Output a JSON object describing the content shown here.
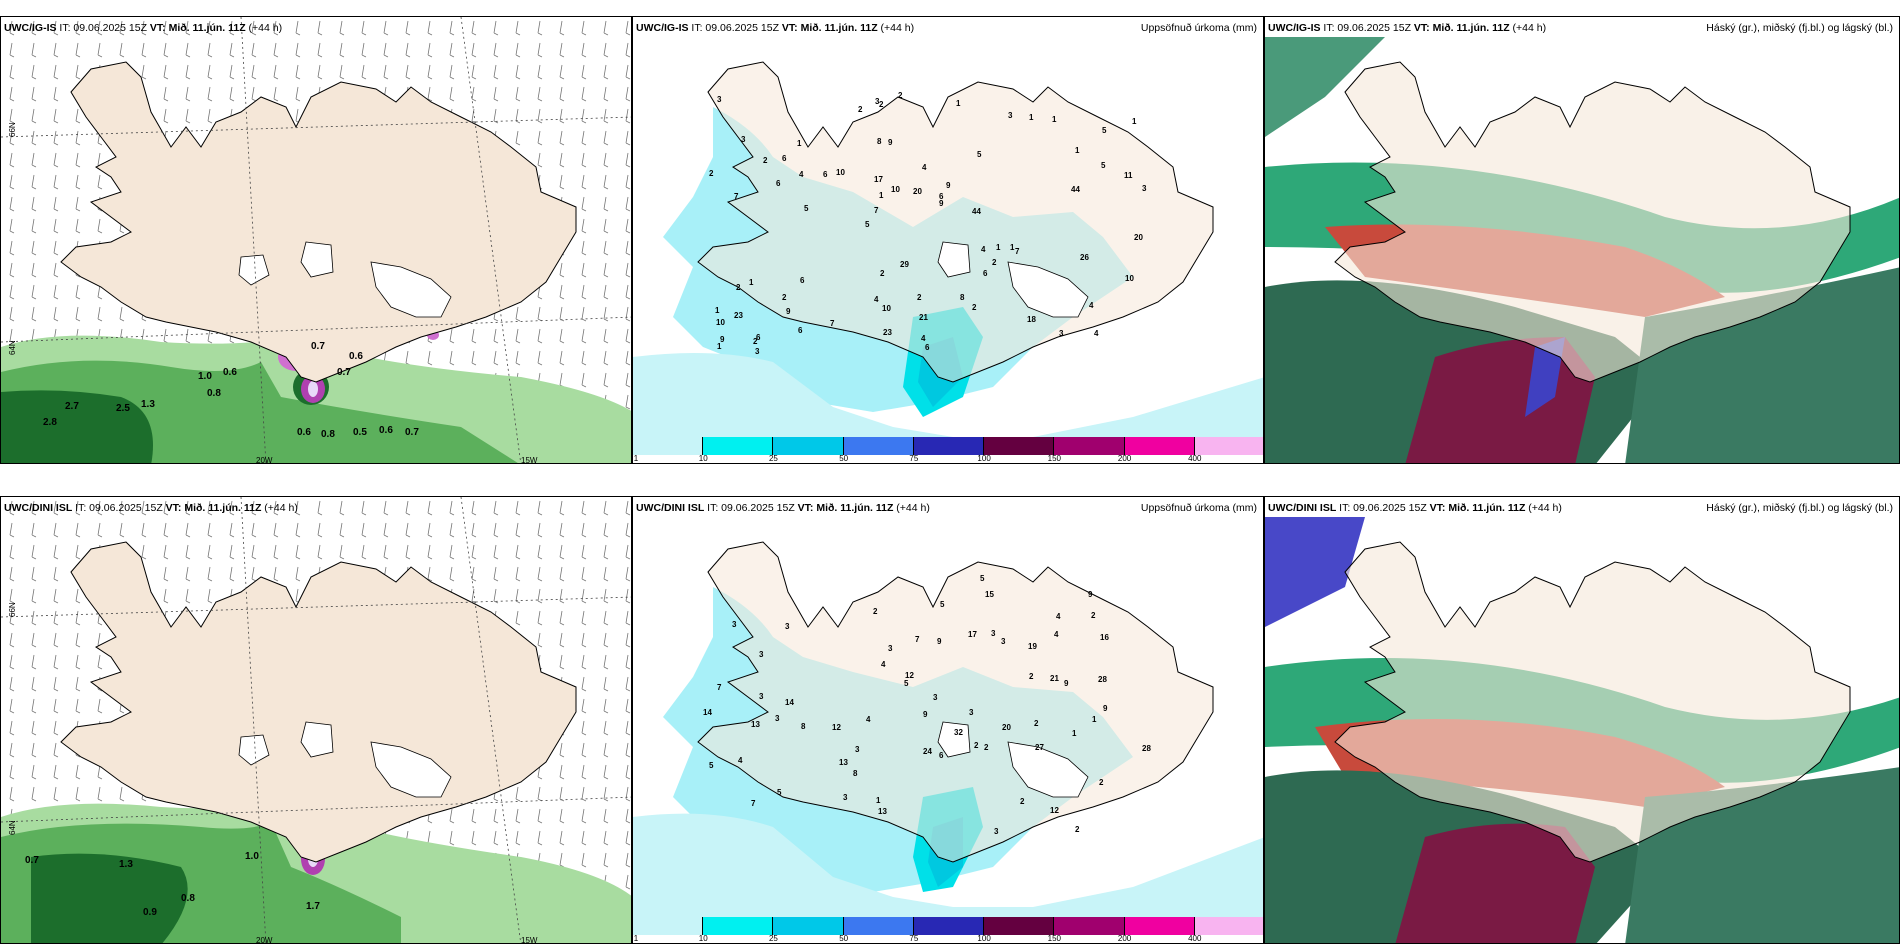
{
  "panels": [
    {
      "id": "top-left",
      "model": "UWC/IG-IS",
      "it": "IT: 09.06.2025 15Z",
      "vt_label": "VT:",
      "vt": "Mið. 11.jún. 11Z",
      "lead": "(+44 h)",
      "right_title": "",
      "grid_lat": [
        "66N",
        "64N",
        "64N"
      ],
      "grid_lon": [
        "20W",
        "15W"
      ]
    },
    {
      "id": "top-mid",
      "model": "UWC/IG-IS",
      "it": "IT: 09.06.2025 15Z",
      "vt_label": "VT:",
      "vt": "Mið. 11.jún. 11Z",
      "lead": "(+44 h)",
      "right_title": "Uppsöfnuð úrkoma (mm)"
    },
    {
      "id": "top-right",
      "model": "UWC/IG-IS",
      "it": "IT: 09.06.2025 15Z",
      "vt_label": "VT:",
      "vt": "Mið. 11.jún. 11Z",
      "lead": "(+44 h)",
      "right_title": "Háský (gr.), miðský (fj.bl.) og lágský (bl.)"
    },
    {
      "id": "bot-left",
      "model": "UWC/DINI ISL",
      "it": "IT: 09.06.2025 15Z",
      "vt_label": "VT:",
      "vt": "Mið. 11.jún. 11Z",
      "lead": "(+44 h)",
      "right_title": ""
    },
    {
      "id": "bot-mid",
      "model": "UWC/DINI ISL",
      "it": "IT: 09.06.2025 15Z",
      "vt_label": "VT:",
      "vt": "Mið. 11.jún. 11Z",
      "lead": "(+44 h)",
      "right_title": "Uppsöfnuð úrkoma (mm)"
    },
    {
      "id": "bot-right",
      "model": "UWC/DINI ISL",
      "it": "IT: 09.06.2025 15Z",
      "vt_label": "VT:",
      "vt": "Mið. 11.jún. 11Z",
      "lead": "(+44 h)",
      "right_title": "Háský (gr.), miðský (fj.bl.) og lágský (bl.)"
    }
  ],
  "colorbar": {
    "ticks": [
      "1",
      "10",
      "25",
      "50",
      "75",
      "100",
      "150",
      "200",
      "400"
    ],
    "colors": [
      "#c8f4f8",
      "#00f0f0",
      "#00c8e8",
      "#3c78f0",
      "#2828b4",
      "#640040",
      "#a0006e",
      "#f000a0",
      "#f8b4f0"
    ]
  },
  "top_left_values": [
    "0.7",
    "0.6",
    "0.7",
    "1.0",
    "0.6",
    "0.8",
    "2.7",
    "2.5",
    "1.3",
    "2.8",
    "0.6",
    "0.8",
    "0.5",
    "0.6",
    "0.7"
  ],
  "bot_left_values": [
    "0.7",
    "1.0",
    "0.8",
    "0.9",
    "1.3",
    "1.7"
  ],
  "top_mid_values": [
    "4",
    "7",
    "5",
    "5",
    "5",
    "6",
    "8",
    "4",
    "1",
    "10",
    "10",
    "9",
    "9",
    "9",
    "7",
    "3",
    "2",
    "3",
    "4",
    "5",
    "7",
    "4",
    "1",
    "1",
    "3",
    "6",
    "3",
    "4",
    "1",
    "6",
    "6",
    "6",
    "6",
    "6",
    "11",
    "6",
    "9",
    "10",
    "9",
    "2",
    "1",
    "1",
    "2",
    "2",
    "2",
    "3",
    "1",
    "2",
    "1",
    "2",
    "5",
    "2",
    "6",
    "1",
    "2",
    "1",
    "2",
    "10",
    "10",
    "2",
    "7",
    "1",
    "4",
    "1",
    "3",
    "2",
    "20",
    "17",
    "21",
    "20",
    "23",
    "44",
    "26",
    "23",
    "44",
    "29",
    "18",
    "4",
    "8",
    "3"
  ],
  "bot_mid_values": [
    "2",
    "3",
    "2",
    "3",
    "2",
    "3",
    "5",
    "12",
    "19",
    "7",
    "3",
    "12",
    "8",
    "2",
    "3",
    "4",
    "2",
    "3",
    "7",
    "7",
    "9",
    "9",
    "21",
    "28",
    "9",
    "3",
    "8",
    "9",
    "5",
    "2",
    "2",
    "13",
    "13",
    "3",
    "3",
    "1",
    "1",
    "2",
    "4",
    "3",
    "3",
    "6",
    "3",
    "5",
    "4",
    "14",
    "16",
    "15",
    "17",
    "24",
    "20",
    "28",
    "27",
    "9",
    "4",
    "14",
    "13",
    "12",
    "32",
    "2",
    "1",
    "4",
    "3",
    "5",
    "5"
  ]
}
